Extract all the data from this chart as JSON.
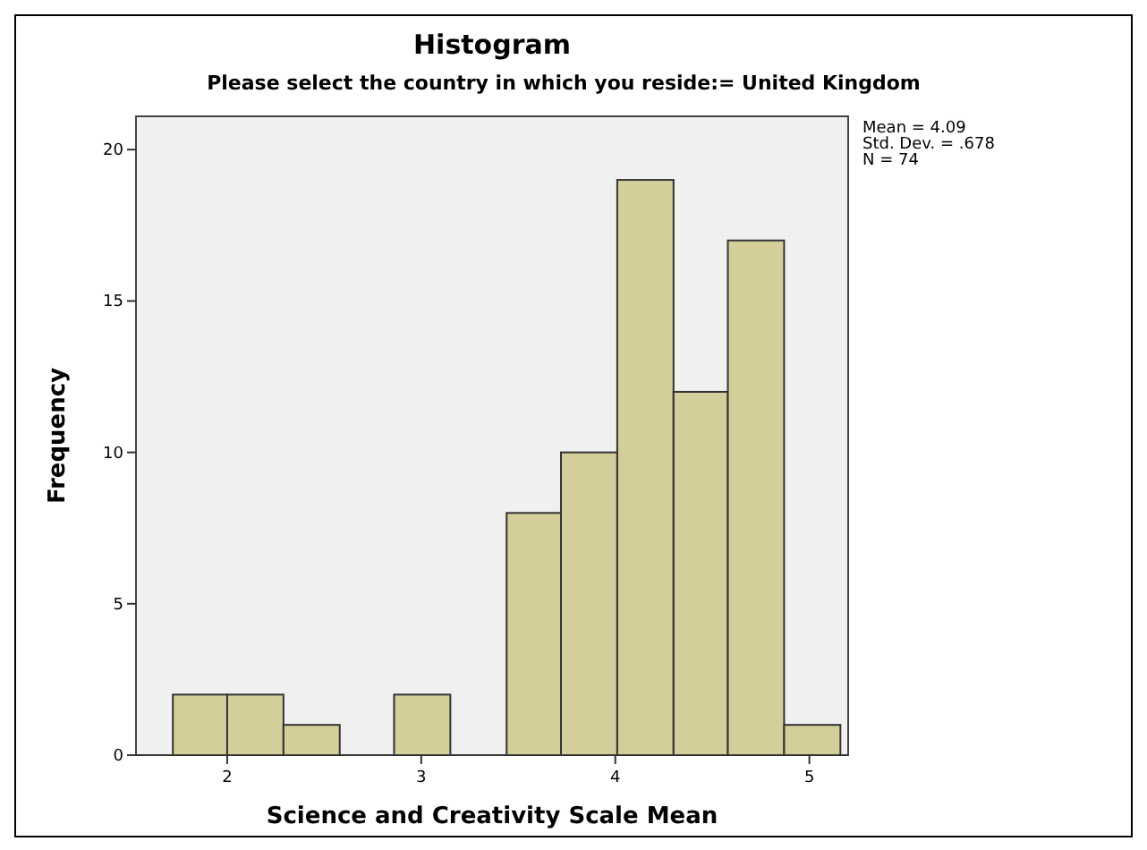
{
  "chart_data": {
    "type": "histogram",
    "title": "Histogram",
    "subtitle": "Please select the country in which you reside:= United Kingdom",
    "xlabel": "Science and Creativity Scale Mean",
    "ylabel": "Frequency",
    "bins": [
      1.72,
      2.0,
      2.29,
      2.58,
      2.86,
      3.15,
      3.44,
      3.72,
      4.01,
      4.3,
      4.58,
      4.87,
      5.16
    ],
    "values": [
      2,
      2,
      1,
      0,
      2,
      0,
      8,
      10,
      19,
      12,
      17,
      1
    ],
    "color": "#d4cf9a",
    "xlim": [
      1.53,
      5.2
    ],
    "xticks": [
      2,
      3,
      4,
      5
    ],
    "ylim": [
      0,
      21.1
    ],
    "yticks": [
      0,
      5,
      10,
      15,
      20
    ],
    "grid": false,
    "annotations": [
      "Mean = 4.09",
      "Std. Dev. = .678",
      "N = 74"
    ]
  }
}
